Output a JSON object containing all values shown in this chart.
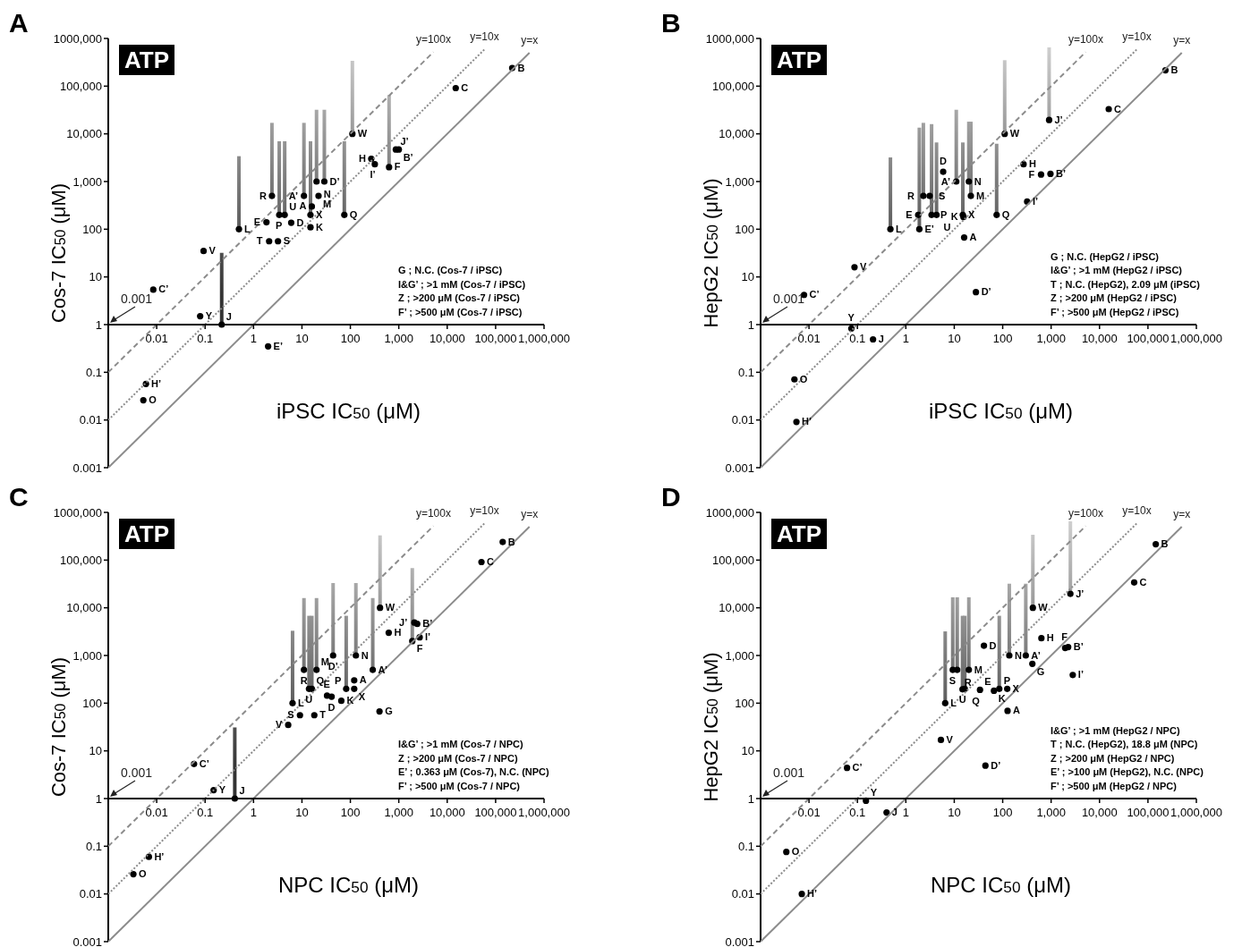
{
  "chart_data": [
    {
      "type": "scatter",
      "title": "A",
      "subtitle": "ATP",
      "xlabel": "iPSC IC$_{50}$ (μM)",
      "ylabel": "Cos-7 IC$_{50}$ (μM)",
      "log": "xy",
      "marker": "circle",
      "xlim": [
        0.001,
        1000000
      ],
      "ylim": [
        0.001,
        1000000
      ],
      "xticks": [
        0.01,
        0.1,
        1,
        10,
        100,
        {
          "value": 1000,
          "label": "1,000"
        },
        {
          "value": 10000,
          "label": "10,000"
        },
        {
          "value": 100000,
          "label": "100,000"
        },
        {
          "value": 1000000,
          "label": "1,000,000"
        }
      ],
      "yticks": [
        0.001,
        0.01,
        0.1,
        1,
        10,
        100,
        {
          "value": 1000,
          "label": "1,000"
        },
        {
          "value": 10000,
          "label": "10,000"
        },
        {
          "value": 100000,
          "label": "100,000"
        },
        {
          "value": 1000000,
          "label": "1000,000"
        }
      ],
      "annotations": [
        "0.001",
        "G ; N.C. (Cos-7 / iPSC)",
        "I&G’ ; >1 mM (Cos-7 / iPSC)",
        "Z ; >200 μM (Cos-7 / iPSC)",
        "F’ ; >500 μM (Cos-7 / iPSC)"
      ],
      "series": [
        {
          "type": "scatter",
          "color": "#000000",
          "x": [
            220000,
            15000,
            110,
            870,
            1000,
            270,
            320,
            630,
            20,
            29,
            2.4,
            11,
            22,
            16,
            15,
            3.4,
            4.4,
            1.85,
            6,
            15,
            75,
            0.5,
            2.1,
            3.2,
            0.093,
            0.0085,
            0.079,
            0.22,
            2,
            0.006,
            0.0053
          ],
          "values": [
            240000,
            91000,
            10000,
            4700,
            4700,
            3000,
            2300,
            2000,
            1000,
            1000,
            500,
            500,
            500,
            300,
            200,
            200,
            200,
            140,
            137,
            110,
            200,
            100,
            56,
            56,
            35,
            5.4,
            1.5,
            1,
            0.35,
            0.057,
            0.026
          ],
          "value_labels": [
            "B",
            "C",
            "W",
            "J’",
            "B’",
            "H",
            "I’",
            "F",
            "N",
            "D’",
            "R",
            "A’",
            "M",
            "A",
            "X",
            "P",
            "U",
            "E",
            "D",
            "K",
            "Q",
            "L",
            "T",
            "S",
            "V",
            "C’",
            "Y",
            "J",
            "E’",
            "H’",
            "O"
          ],
          "errors": [
            null,
            null,
            [
              10000,
              340000
            ],
            null,
            null,
            null,
            null,
            [
              2000,
              65000
            ],
            [
              1000,
              32000
            ],
            [
              1000,
              32000
            ],
            [
              500,
              17000
            ],
            [
              500,
              17000
            ],
            null,
            null,
            [
              200,
              7000
            ],
            [
              200,
              7000
            ],
            [
              200,
              7000
            ],
            null,
            null,
            null,
            [
              200,
              7000
            ],
            [
              100,
              3400
            ],
            null,
            null,
            null,
            null,
            null,
            [
              1,
              32
            ],
            null,
            null,
            null
          ]
        },
        {
          "type": "line",
          "name": "y=100x",
          "color": "#8c8c8c",
          "line_style": "dashed",
          "marker": "none",
          "x": [
            0.001,
            5200
          ],
          "values": [
            0.1,
            520000
          ]
        },
        {
          "type": "line",
          "name": "y=10x",
          "color": "#8c8c8c",
          "line_style": "dotted",
          "marker": "none",
          "x": [
            0.001,
            59000
          ],
          "values": [
            0.01,
            590000
          ]
        },
        {
          "type": "line",
          "name": "y=x",
          "color": "#8c8c8c",
          "line_style": "solid",
          "marker": "none",
          "x": [
            0.001,
            500000
          ],
          "values": [
            0.001,
            500000
          ]
        }
      ]
    },
    {
      "type": "scatter",
      "title": "B",
      "subtitle": "ATP",
      "xlabel": "iPSC IC$_{50}$ (μM)",
      "ylabel": "HepG2 IC$_{50}$ (μM)",
      "log": "xy",
      "marker": "circle",
      "xlim": [
        0.001,
        1000000
      ],
      "ylim": [
        0.001,
        1000000
      ],
      "xticks": [
        0.01,
        0.1,
        1,
        10,
        100,
        {
          "value": 1000,
          "label": "1,000"
        },
        {
          "value": 10000,
          "label": "10,000"
        },
        {
          "value": 100000,
          "label": "100,000"
        },
        {
          "value": 1000000,
          "label": "1,000,000"
        }
      ],
      "yticks": [
        0.001,
        0.01,
        0.1,
        1,
        10,
        100,
        {
          "value": 1000,
          "label": "1,000"
        },
        {
          "value": 10000,
          "label": "10,000"
        },
        {
          "value": 100000,
          "label": "100,000"
        },
        {
          "value": 1000000,
          "label": "1000,000"
        }
      ],
      "annotations": [
        "0.001",
        "G ; N.C. (HepG2 / iPSC)",
        "I&G’ ; >1 mM (HepG2 / iPSC)",
        "T ; N.C. (HepG2), 2.09 μM (iPSC)",
        "Z ; >200 μM (HepG2 / iPSC)",
        "F’ ; >500 μM (HepG2 / iPSC)"
      ],
      "series": [
        {
          "type": "scatter",
          "color": "#000000",
          "x": [
            230000,
            15500,
            910,
            110,
            270,
            620,
            970,
            320,
            5.9,
            11,
            20,
            22,
            2.3,
            3.1,
            1.8,
            1.9,
            3.4,
            4.3,
            15,
            15.5,
            75,
            0.48,
            16,
            0.087,
            0.0079,
            28,
            0.075,
            0.21,
            0.005,
            0.0055
          ],
          "values": [
            215000,
            33000,
            19500,
            10000,
            2300,
            1400,
            1450,
            380,
            1600,
            1000,
            1000,
            500,
            500,
            500,
            200,
            100,
            200,
            200,
            200,
            180,
            200,
            100,
            67,
            16,
            4.2,
            4.8,
            0.83,
            0.49,
            0.071,
            0.0091
          ],
          "value_labels": [
            "B",
            "C",
            "J’",
            "W",
            "H",
            "F",
            "B’",
            "I’",
            "D",
            "A’",
            "N",
            "M",
            "R",
            "S",
            "E",
            "E’",
            "P",
            "U",
            "X",
            "K",
            "Q",
            "L",
            "A",
            "V",
            "C’",
            "D’",
            "Y",
            "J",
            "O",
            "H’"
          ],
          "errors": [
            null,
            null,
            [
              19500,
              650000
            ],
            [
              10000,
              350000
            ],
            null,
            null,
            null,
            null,
            null,
            [
              1000,
              32000
            ],
            [
              1000,
              18000
            ],
            [
              500,
              18000
            ],
            [
              500,
              17000
            ],
            null,
            null,
            [
              100,
              13500
            ],
            [
              200,
              16000
            ],
            [
              200,
              6600
            ],
            [
              200,
              6600
            ],
            null,
            [
              200,
              6200
            ],
            [
              100,
              3200
            ],
            null,
            null,
            null,
            null,
            null,
            null,
            null,
            null
          ]
        },
        {
          "type": "line",
          "name": "y=100x",
          "color": "#8c8c8c",
          "line_style": "dashed",
          "marker": "none",
          "x": [
            0.001,
            5200
          ],
          "values": [
            0.1,
            520000
          ]
        },
        {
          "type": "line",
          "name": "y=10x",
          "color": "#8c8c8c",
          "line_style": "dotted",
          "marker": "none",
          "x": [
            0.001,
            59000
          ],
          "values": [
            0.01,
            590000
          ]
        },
        {
          "type": "line",
          "name": "y=x",
          "color": "#8c8c8c",
          "line_style": "solid",
          "marker": "none",
          "x": [
            0.001,
            500000
          ],
          "values": [
            0.001,
            500000
          ]
        }
      ]
    },
    {
      "type": "scatter",
      "title": "C",
      "subtitle": "ATP",
      "xlabel": "NPC IC$_{50}$ (μM)",
      "ylabel": "Cos-7 IC$_{50}$ (μM)",
      "log": "xy",
      "marker": "circle",
      "xlim": [
        0.001,
        1000000
      ],
      "ylim": [
        0.001,
        1000000
      ],
      "xticks": [
        0.01,
        0.1,
        1,
        10,
        100,
        {
          "value": 1000,
          "label": "1,000"
        },
        {
          "value": 10000,
          "label": "10,000"
        },
        {
          "value": 100000,
          "label": "100,000"
        },
        {
          "value": 1000000,
          "label": "1,000,000"
        }
      ],
      "yticks": [
        0.001,
        0.01,
        0.1,
        1,
        10,
        100,
        {
          "value": 1000,
          "label": "1,000"
        },
        {
          "value": 10000,
          "label": "10,000"
        },
        {
          "value": 100000,
          "label": "100,000"
        },
        {
          "value": 1000000,
          "label": "1000,000"
        }
      ],
      "annotations": [
        "0.001",
        "I&G’ ; >1 mM (Cos-7 / NPC)",
        "Z ; >200 μM (Cos-7 / NPC)",
        "E’ ; 0.363 μM (Cos-7), N.C. (NPC)",
        "F’ ; >500 μM (Cos-7 / NPC)"
      ],
      "series": [
        {
          "type": "scatter",
          "color": "#000000",
          "x": [
            140000,
            51000,
            410,
            2100,
            2400,
            620,
            1900,
            2700,
            44,
            130,
            11,
            20,
            290,
            120,
            82,
            120,
            14,
            16,
            33,
            41,
            65,
            6.4,
            400,
            9.1,
            18,
            5.2,
            0.059,
            0.15,
            0.41,
            0.0069,
            0.0033
          ],
          "values": [
            240000,
            91000,
            10000,
            4900,
            4600,
            3000,
            2000,
            2400,
            1000,
            1000,
            500,
            500,
            500,
            300,
            200,
            200,
            200,
            200,
            144,
            137,
            112,
            100,
            67,
            56,
            56,
            35,
            5.3,
            1.5,
            1,
            0.06,
            0.026
          ],
          "value_labels": [
            "B",
            "C",
            "W",
            "J’",
            "B’",
            "H",
            "F",
            "I’",
            "D’",
            "N",
            "R",
            "M",
            "A’",
            "A",
            "P",
            "X",
            "U",
            "Q",
            "E",
            "D",
            "K",
            "L",
            "G",
            "S",
            "T",
            "V",
            "C’",
            "Y",
            "J",
            "H’",
            "O"
          ],
          "errors": [
            null,
            null,
            [
              10000,
              330000
            ],
            null,
            null,
            null,
            [
              2000,
              68000
            ],
            null,
            [
              1000,
              33000
            ],
            [
              1000,
              33000
            ],
            [
              500,
              16000
            ],
            [
              500,
              16000
            ],
            [
              500,
              16000
            ],
            null,
            [
              200,
              6800
            ],
            null,
            [
              200,
              6800
            ],
            [
              200,
              6800
            ],
            null,
            null,
            null,
            [
              100,
              3300
            ],
            null,
            null,
            null,
            null,
            null,
            null,
            [
              1,
              31
            ],
            null,
            null
          ]
        },
        {
          "type": "line",
          "name": "y=100x",
          "color": "#8c8c8c",
          "line_style": "dashed",
          "marker": "none",
          "x": [
            0.001,
            5200
          ],
          "values": [
            0.1,
            520000
          ]
        },
        {
          "type": "line",
          "name": "y=10x",
          "color": "#8c8c8c",
          "line_style": "dotted",
          "marker": "none",
          "x": [
            0.001,
            59000
          ],
          "values": [
            0.01,
            590000
          ]
        },
        {
          "type": "line",
          "name": "y=x",
          "color": "#8c8c8c",
          "line_style": "solid",
          "marker": "none",
          "x": [
            0.001,
            500000
          ],
          "values": [
            0.001,
            500000
          ]
        }
      ]
    },
    {
      "type": "scatter",
      "title": "D",
      "subtitle": "ATP",
      "xlabel": "NPC IC$_{50}$ (μM)",
      "ylabel": "HepG2 IC$_{50}$ (μM)",
      "log": "xy",
      "marker": "circle",
      "xlim": [
        0.001,
        1000000
      ],
      "ylim": [
        0.001,
        1000000
      ],
      "xticks": [
        0.01,
        0.1,
        1,
        10,
        100,
        {
          "value": 1000,
          "label": "1,000"
        },
        {
          "value": 10000,
          "label": "10,000"
        },
        {
          "value": 100000,
          "label": "100,000"
        },
        {
          "value": 1000000,
          "label": "1,000,000"
        }
      ],
      "yticks": [
        0.001,
        0.01,
        0.1,
        1,
        10,
        100,
        {
          "value": 1000,
          "label": "1,000"
        },
        {
          "value": 10000,
          "label": "10,000"
        },
        {
          "value": 100000,
          "label": "100,000"
        },
        {
          "value": 1000000,
          "label": "1000,000"
        }
      ],
      "annotations": [
        "0.001",
        "I&G’ ; >1 mM (HepG2 / NPC)",
        "T ; N.C. (HepG2), 18.8 μM (NPC)",
        "Z ; >200 μM (HepG2 / NPC)",
        "E’ ; >100 μM (HepG2), N.C. (NPC)",
        "F’ ; >500 μM (HepG2 / NPC)"
      ],
      "series": [
        {
          "type": "scatter",
          "color": "#000000",
          "x": [
            145000,
            52000,
            2500,
            420,
            630,
            1950,
            2250,
            2800,
            41,
            137,
            300,
            410,
            9.3,
            11.5,
            20,
            14.8,
            16.5,
            34,
            66,
            85,
            124,
            6.5,
            126,
            5.3,
            44,
            0.061,
            0.15,
            0.4,
            0.0034,
            0.0071
          ],
          "values": [
            215000,
            34000,
            19600,
            10000,
            2300,
            1440,
            1500,
            390,
            1600,
            1000,
            1000,
            670,
            500,
            500,
            500,
            195,
            200,
            190,
            182,
            200,
            200,
            100,
            69,
            17,
            4.9,
            4.4,
            0.9,
            0.51,
            0.076,
            0.01
          ],
          "value_labels": [
            "B",
            "C",
            "J’",
            "W",
            "H",
            "F",
            "B’",
            "I’",
            "D",
            "N",
            "A’",
            "G",
            "S",
            "R",
            "M",
            "U",
            "Q",
            "E",
            "K",
            "P",
            "X",
            "L",
            "A",
            "V",
            "D’",
            "C’",
            "Y",
            "J",
            "O",
            "H’"
          ],
          "errors": [
            null,
            null,
            [
              19600,
              650000
            ],
            [
              10000,
              340000
            ],
            null,
            null,
            null,
            null,
            null,
            [
              1000,
              32000
            ],
            [
              1000,
              32000
            ],
            null,
            [
              500,
              16600
            ],
            [
              500,
              16600
            ],
            [
              500,
              16600
            ],
            [
              195,
              6800
            ],
            [
              200,
              6800
            ],
            null,
            null,
            [
              200,
              6800
            ],
            null,
            [
              100,
              3200
            ],
            null,
            null,
            null,
            null,
            null,
            null,
            null,
            null
          ]
        },
        {
          "type": "line",
          "name": "y=100x",
          "color": "#8c8c8c",
          "line_style": "dashed",
          "marker": "none",
          "x": [
            0.001,
            5200
          ],
          "values": [
            0.1,
            520000
          ]
        },
        {
          "type": "line",
          "name": "y=10x",
          "color": "#8c8c8c",
          "line_style": "dotted",
          "marker": "none",
          "x": [
            0.001,
            59000
          ],
          "values": [
            0.01,
            590000
          ]
        },
        {
          "type": "line",
          "name": "y=x",
          "color": "#8c8c8c",
          "line_style": "solid",
          "marker": "none",
          "x": [
            0.001,
            500000
          ],
          "values": [
            0.001,
            500000
          ]
        }
      ]
    }
  ]
}
